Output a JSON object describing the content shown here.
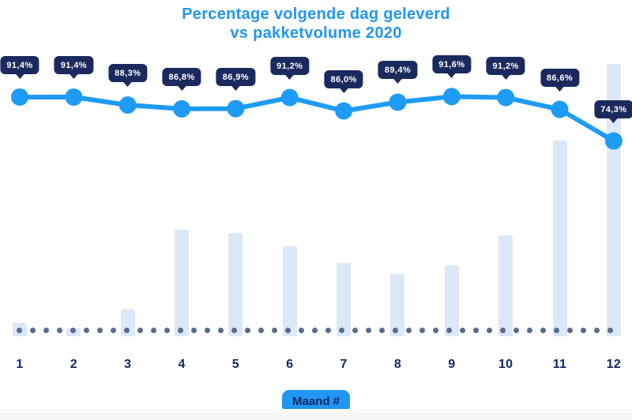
{
  "page": {
    "background": "#ffffff",
    "footer_band_color": "#f7f7f8"
  },
  "title": {
    "line1": "Percentage volgende dag geleverd",
    "line2": "vs pakketvolume 2020",
    "color": "#2196f3"
  },
  "x_axis": {
    "label_badge": "Maand #",
    "badge_bg": "#2196f3",
    "badge_text_color": "#0e2a63",
    "tick_color": "#13265f"
  },
  "chart_data": {
    "type": "line",
    "title": "Percentage volgende dag geleverd vs pakketvolume 2020",
    "xlabel": "Maand #",
    "ylabel": "",
    "categories": [
      "1",
      "2",
      "3",
      "4",
      "5",
      "6",
      "7",
      "8",
      "9",
      "10",
      "11",
      "12"
    ],
    "legend": false,
    "grid": false,
    "series": [
      {
        "name": "percentage-volgende-dag-geleverd",
        "type": "line",
        "unit": "%",
        "color": "#1d9bf6",
        "values": [
          91.4,
          91.4,
          88.3,
          86.8,
          86.9,
          91.2,
          86.0,
          89.4,
          91.6,
          91.2,
          86.6,
          74.3
        ],
        "labels": [
          "91,4%",
          "91,4%",
          "88,3%",
          "86,8%",
          "86,9%",
          "91,2%",
          "86,0%",
          "89,4%",
          "91,6%",
          "91,2%",
          "86,6%",
          "74,3%"
        ]
      },
      {
        "name": "pakketvolume",
        "type": "bar",
        "unit": "percent_of_max_volume_estimated",
        "color": "#dbe8f7",
        "values": [
          5,
          3,
          10,
          39,
          38,
          33,
          27,
          23,
          26,
          37,
          72,
          100
        ]
      }
    ],
    "tooltip": {
      "bg": "#1b2a5e",
      "text_color": "#ffffff"
    },
    "baseline_dots_color": "#5a6a8e",
    "ylim_percent": [
      70,
      95
    ]
  }
}
